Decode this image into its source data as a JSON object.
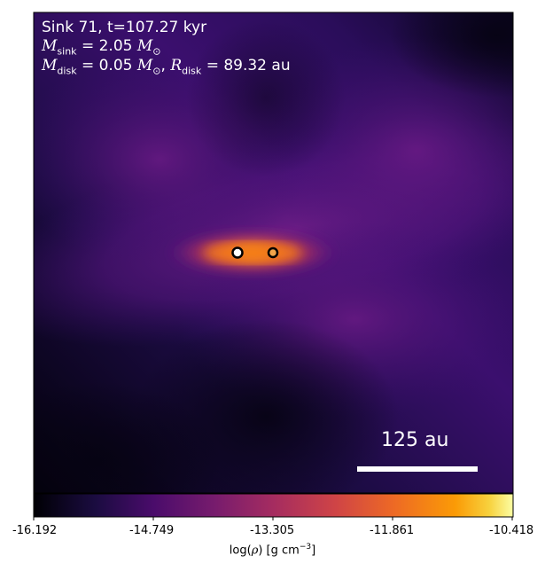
{
  "annotations": {
    "line1": "Sink 71, t=107.27 kyr",
    "m_sink_symbol": "M",
    "m_sink_sub": "sink",
    "m_sink_value": "= 2.05",
    "m_unit_symbol": "M",
    "m_unit_sub": "⊙",
    "m_disk_symbol": "M",
    "m_disk_sub": "disk",
    "m_disk_value": "= 0.05",
    "r_disk_symbol": "R",
    "r_disk_sub": "disk",
    "r_disk_value": "= 89.32",
    "r_unit": "au"
  },
  "scale_bar": {
    "label": "125 au"
  },
  "colorbar": {
    "ticks": [
      "-16.192",
      "-14.749",
      "-13.305",
      "-11.861",
      "-10.418"
    ],
    "label_prefix": "log(",
    "label_rho": "ρ",
    "label_mid": ") [g cm",
    "label_sup": "−3",
    "label_suffix": "]",
    "colormap": "inferno"
  },
  "sinks": [
    {
      "name": "sink-primary"
    },
    {
      "name": "sink-secondary"
    }
  ],
  "colors": {
    "background": "#ffffff",
    "frame": "#000000",
    "text": "#ffffff",
    "cmap_low": "#000004",
    "cmap_mid": "#8b2a80",
    "cmap_high": "#fcfea4"
  }
}
